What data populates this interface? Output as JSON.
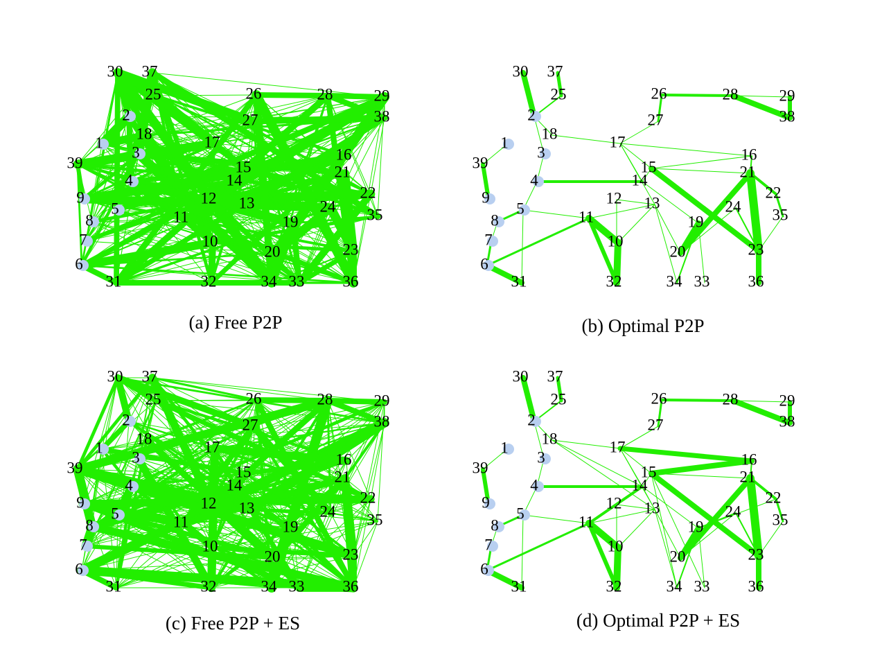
{
  "panels": [
    {
      "caption": "(a) Free P2P",
      "nodes": [
        "1",
        "2",
        "3",
        "4",
        "5",
        "6",
        "7",
        "8",
        "9",
        "10",
        "11",
        "12",
        "13",
        "14",
        "15",
        "16",
        "17",
        "18",
        "19",
        "20",
        "21",
        "22",
        "23",
        "24",
        "25",
        "26",
        "27",
        "28",
        "29",
        "30",
        "31",
        "32",
        "33",
        "34",
        "35",
        "36",
        "37",
        "38",
        "39"
      ]
    },
    {
      "caption": "(b) Optimal P2P",
      "nodes": [
        "1",
        "2",
        "3",
        "4",
        "5",
        "6",
        "7",
        "8",
        "9",
        "10",
        "11",
        "12",
        "13",
        "14",
        "15",
        "16",
        "17",
        "18",
        "19",
        "20",
        "21",
        "22",
        "23",
        "24",
        "25",
        "26",
        "27",
        "28",
        "29",
        "30",
        "31",
        "32",
        "33",
        "34",
        "35",
        "36",
        "37",
        "38",
        "39"
      ]
    },
    {
      "caption": "(c) Free P2P + ES",
      "nodes": [
        "1",
        "2",
        "3",
        "4",
        "5",
        "6",
        "7",
        "8",
        "9",
        "10",
        "11",
        "12",
        "13",
        "14",
        "15",
        "16",
        "17",
        "18",
        "19",
        "20",
        "21",
        "22",
        "23",
        "24",
        "25",
        "26",
        "27",
        "28",
        "29",
        "30",
        "31",
        "32",
        "33",
        "34",
        "35",
        "36",
        "37",
        "38",
        "39"
      ]
    },
    {
      "caption": "(d) Optimal P2P + ES",
      "nodes": [
        "1",
        "2",
        "3",
        "4",
        "5",
        "6",
        "7",
        "8",
        "9",
        "10",
        "11",
        "12",
        "13",
        "14",
        "15",
        "16",
        "17",
        "18",
        "19",
        "20",
        "21",
        "22",
        "23",
        "24",
        "25",
        "26",
        "27",
        "28",
        "29",
        "30",
        "31",
        "32",
        "33",
        "34",
        "35",
        "36",
        "37",
        "38",
        "39"
      ]
    }
  ]
}
